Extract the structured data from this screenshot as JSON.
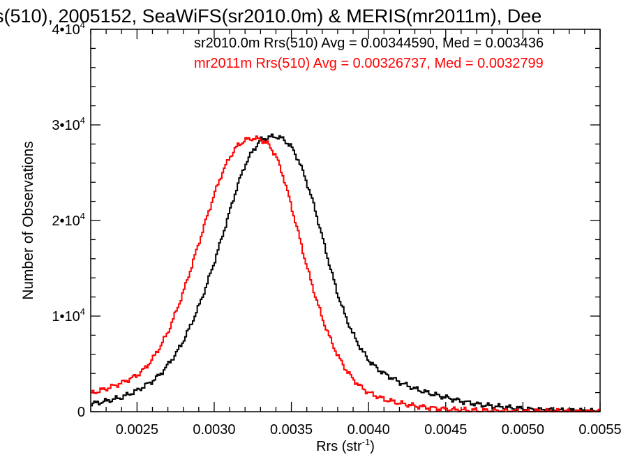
{
  "chart_data": {
    "type": "line",
    "step": true,
    "title": "s(510), 2005152, SeaWiFS(sr2010.0m) & MERIS(mr2011m), Dee",
    "xlabel": "Rrs (str",
    "xlabel_sup": "-1",
    "xlabel_close": ")",
    "ylabel": "Number of Observations",
    "xlim": [
      0.0022,
      0.0055
    ],
    "ylim": [
      0,
      40000
    ],
    "xticks": [
      {
        "value": 0.0025,
        "label": "0.0025"
      },
      {
        "value": 0.003,
        "label": "0.0030"
      },
      {
        "value": 0.0035,
        "label": "0.0035"
      },
      {
        "value": 0.004,
        "label": "0.0040"
      },
      {
        "value": 0.0045,
        "label": "0.0045"
      },
      {
        "value": 0.005,
        "label": "0.0050"
      },
      {
        "value": 0.0055,
        "label": "0.0055"
      }
    ],
    "yticks": [
      {
        "value": 0,
        "label": "0",
        "exp": ""
      },
      {
        "value": 10000,
        "label": "1•10",
        "exp": "4"
      },
      {
        "value": 20000,
        "label": "2•10",
        "exp": "4"
      },
      {
        "value": 30000,
        "label": "3•10",
        "exp": "4"
      },
      {
        "value": 40000,
        "label": "4•10",
        "exp": "4"
      }
    ],
    "x_minor_step": 0.0001,
    "y_minor_step": 2000,
    "grid": false,
    "legend_position": "top-right",
    "annotations": [
      {
        "text": "sr2010.0m Rrs(510) Avg = 0.00344590, Med = 0.003436",
        "color": "#000000"
      },
      {
        "text": "mr2011m Rrs(510) Avg = 0.00326737, Med = 0.0032799",
        "color": "#ff0000"
      }
    ],
    "series": [
      {
        "color": "#000000",
        "x": [
          0.0022,
          0.0023,
          0.0024,
          0.0025,
          0.0026,
          0.00265,
          0.0027,
          0.00275,
          0.0028,
          0.00285,
          0.0029,
          0.00295,
          0.003,
          0.00305,
          0.0031,
          0.00315,
          0.0032,
          0.00325,
          0.0033,
          0.00335,
          0.0034,
          0.00345,
          0.0035,
          0.00355,
          0.0036,
          0.00365,
          0.0037,
          0.00375,
          0.0038,
          0.00385,
          0.0039,
          0.00395,
          0.004,
          0.00405,
          0.0041,
          0.0042,
          0.0043,
          0.0044,
          0.0045,
          0.0046,
          0.0047,
          0.0048,
          0.0049,
          0.005,
          0.0051,
          0.0052,
          0.0053,
          0.0054,
          0.0055
        ],
        "y": [
          800,
          1100,
          1500,
          2200,
          3200,
          3900,
          4900,
          6000,
          7400,
          9100,
          11000,
          13200,
          15600,
          18200,
          20900,
          23600,
          25800,
          27300,
          28400,
          28700,
          28800,
          28500,
          27700,
          26200,
          24000,
          21400,
          18300,
          15200,
          12300,
          10000,
          8100,
          6600,
          5400,
          4600,
          4000,
          3100,
          2400,
          1900,
          1500,
          1100,
          800,
          600,
          450,
          300,
          200,
          150,
          100,
          50,
          20
        ]
      },
      {
        "color": "#ff0000",
        "x": [
          0.0022,
          0.0023,
          0.0024,
          0.0025,
          0.00255,
          0.0026,
          0.00265,
          0.0027,
          0.00275,
          0.0028,
          0.00285,
          0.0029,
          0.00295,
          0.003,
          0.00305,
          0.0031,
          0.00315,
          0.0032,
          0.00325,
          0.0033,
          0.00335,
          0.0034,
          0.00345,
          0.0035,
          0.00355,
          0.0036,
          0.00365,
          0.0037,
          0.00375,
          0.0038,
          0.00385,
          0.0039,
          0.00395,
          0.004,
          0.0041,
          0.0042,
          0.0043,
          0.0044,
          0.0045,
          0.0046,
          0.0047,
          0.0048,
          0.0049,
          0.005,
          0.0051,
          0.0052,
          0.0053,
          0.0054,
          0.0055
        ],
        "y": [
          1900,
          2400,
          3000,
          3800,
          4500,
          5500,
          6800,
          8300,
          10300,
          12500,
          15000,
          17600,
          20200,
          22700,
          24900,
          26600,
          27800,
          28400,
          28600,
          28500,
          28000,
          26800,
          24500,
          21500,
          18400,
          15200,
          12400,
          9800,
          7700,
          5900,
          4500,
          3400,
          2600,
          2000,
          1300,
          900,
          600,
          400,
          250,
          180,
          120,
          90,
          60,
          40,
          30,
          20,
          15,
          10,
          5
        ]
      }
    ]
  }
}
